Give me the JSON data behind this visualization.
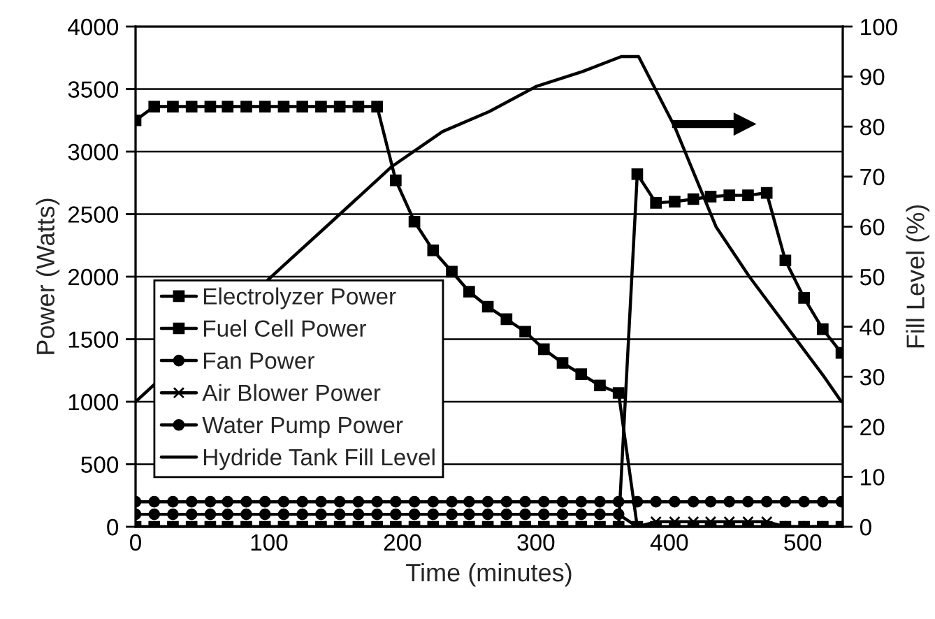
{
  "chart_data": {
    "type": "line",
    "xlabel": "Time (minutes)",
    "ylabel": "Power (Watts)",
    "y2label": "Fill Level (%)",
    "xlim": [
      0,
      530
    ],
    "xticks": [
      0,
      100,
      200,
      300,
      400,
      500
    ],
    "ylim": [
      0,
      4000
    ],
    "yticks": [
      0,
      500,
      1000,
      1500,
      2000,
      2500,
      3000,
      3500,
      4000
    ],
    "y2lim": [
      0,
      100
    ],
    "y2ticks": [
      0,
      10,
      20,
      30,
      40,
      50,
      60,
      70,
      80,
      90,
      100
    ],
    "grid": "y",
    "legend": "bottom left",
    "series": [
      {
        "name": "Electrolyzer Power",
        "color": "#000000",
        "marker": "square",
        "x": [
          0,
          14,
          28,
          42,
          56,
          69,
          83,
          97,
          111,
          125,
          139,
          153,
          167,
          181,
          195,
          209,
          223,
          237,
          250,
          264,
          278,
          292,
          306,
          320,
          334,
          348,
          362,
          376,
          390,
          404,
          418,
          431,
          445,
          459,
          473,
          487,
          501,
          515,
          529
        ],
        "values": [
          3250,
          3360,
          3360,
          3360,
          3360,
          3360,
          3360,
          3360,
          3360,
          3360,
          3360,
          3360,
          3360,
          3360,
          2770,
          2440,
          2210,
          2040,
          1880,
          1760,
          1660,
          1560,
          1420,
          1310,
          1220,
          1130,
          1070,
          0,
          0,
          0,
          0,
          0,
          0,
          0,
          0,
          0,
          0,
          0,
          0
        ]
      },
      {
        "name": "Fuel Cell Power",
        "color": "#000000",
        "marker": "square",
        "x": [
          0,
          14,
          28,
          42,
          56,
          69,
          83,
          97,
          111,
          125,
          139,
          153,
          167,
          181,
          195,
          209,
          223,
          237,
          250,
          264,
          278,
          292,
          306,
          320,
          334,
          348,
          362,
          376,
          390,
          404,
          418,
          431,
          445,
          459,
          473,
          487,
          501,
          515,
          529
        ],
        "values": [
          0,
          0,
          0,
          0,
          0,
          0,
          0,
          0,
          0,
          0,
          0,
          0,
          0,
          0,
          0,
          0,
          0,
          0,
          0,
          0,
          0,
          0,
          0,
          0,
          0,
          0,
          0,
          2820,
          2590,
          2600,
          2620,
          2640,
          2650,
          2650,
          2670,
          2130,
          1830,
          1580,
          1390
        ]
      },
      {
        "name": "Fan Power",
        "color": "#000000",
        "marker": "circle",
        "x": [
          0,
          14,
          28,
          42,
          56,
          69,
          83,
          97,
          111,
          125,
          139,
          153,
          167,
          181,
          195,
          209,
          223,
          237,
          250,
          264,
          278,
          292,
          306,
          320,
          334,
          348,
          362,
          376,
          390,
          404,
          418,
          431,
          445,
          459,
          473,
          487,
          501,
          515,
          529
        ],
        "values": [
          100,
          100,
          100,
          100,
          100,
          100,
          100,
          100,
          100,
          100,
          100,
          100,
          100,
          100,
          100,
          100,
          100,
          100,
          100,
          100,
          100,
          100,
          100,
          100,
          100,
          100,
          100,
          0,
          0,
          0,
          0,
          0,
          0,
          0,
          0,
          0,
          0,
          0,
          0
        ]
      },
      {
        "name": "Air Blower Power",
        "color": "#000000",
        "marker": "cross",
        "x": [
          0,
          14,
          28,
          42,
          56,
          69,
          83,
          97,
          111,
          125,
          139,
          153,
          167,
          181,
          195,
          209,
          223,
          237,
          250,
          264,
          278,
          292,
          306,
          320,
          334,
          348,
          362,
          376,
          390,
          404,
          418,
          431,
          445,
          459,
          473,
          487,
          501,
          515,
          529
        ],
        "values": [
          0,
          0,
          0,
          0,
          0,
          0,
          0,
          0,
          0,
          0,
          0,
          0,
          0,
          0,
          0,
          0,
          0,
          0,
          0,
          0,
          0,
          0,
          0,
          0,
          0,
          0,
          0,
          0,
          40,
          40,
          40,
          40,
          40,
          40,
          40,
          0,
          0,
          0,
          0
        ]
      },
      {
        "name": "Water Pump Power",
        "color": "#000000",
        "marker": "circle",
        "x": [
          0,
          14,
          28,
          42,
          56,
          69,
          83,
          97,
          111,
          125,
          139,
          153,
          167,
          181,
          195,
          209,
          223,
          237,
          250,
          264,
          278,
          292,
          306,
          320,
          334,
          348,
          362,
          376,
          390,
          404,
          418,
          431,
          445,
          459,
          473,
          487,
          501,
          515,
          529
        ],
        "values": [
          200,
          200,
          200,
          200,
          200,
          200,
          200,
          200,
          200,
          200,
          200,
          200,
          200,
          200,
          200,
          200,
          200,
          200,
          200,
          200,
          200,
          200,
          200,
          200,
          200,
          200,
          200,
          200,
          200,
          200,
          200,
          200,
          200,
          200,
          200,
          200,
          200,
          200,
          200
        ]
      },
      {
        "name": "Hydride Tank Fill Level",
        "color": "#000000",
        "marker": "none",
        "axis": "y2",
        "x": [
          0,
          110,
          147,
          192,
          230,
          265,
          300,
          335,
          364,
          377,
          404,
          435,
          460,
          488,
          516,
          529
        ],
        "values": [
          25,
          52,
          61,
          72,
          79,
          83,
          88,
          91,
          94,
          94,
          80,
          60,
          50,
          40,
          30,
          25
        ]
      }
    ]
  }
}
